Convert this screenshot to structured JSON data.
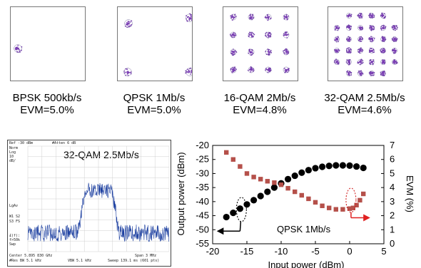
{
  "constellations": [
    {
      "label": "BPSK 500kb/s",
      "evm": "EVM=5.0%"
    },
    {
      "label": "QPSK 1Mb/s",
      "evm": "EVM=5.0%"
    },
    {
      "label": "16-QAM 2Mb/s",
      "evm": "EVM=4.8%"
    },
    {
      "label": "32-QAM 2.5Mb/s",
      "evm": "EVM=4.6%"
    }
  ],
  "spectrum": {
    "title": "32-QAM 2.5Mb/s",
    "ref": "Ref -30 dBm",
    "atten": "#Atten 6 dB",
    "left_labels": [
      "Norm",
      "Log",
      "10",
      "dB/",
      "LgAv",
      "W1  S2",
      "S3  FS",
      "£(f):",
      "f>50k",
      "Swp"
    ],
    "center": "Center 5.895 830 GHz",
    "span": "Span 3 MHz",
    "res_bw": "#Res BW 5.1 kHz",
    "vbw": "VBW 5.1 kHz",
    "sweep": "Sweep 139.1 ms (601 pts)"
  },
  "chart_data": {
    "type": "scatter",
    "title": "",
    "xlabel": "Input power (dBm)",
    "ylabel": "Output power (dBm)",
    "y2label": "EVM (%)",
    "xlim": [
      -20,
      5
    ],
    "ylim": [
      -55,
      -20
    ],
    "y2lim": [
      0,
      7
    ],
    "xticks": [
      -20,
      -15,
      -10,
      -5,
      0,
      5
    ],
    "yticks": [
      -20,
      -25,
      -30,
      -35,
      -40,
      -45,
      -50,
      -55
    ],
    "y2ticks": [
      7,
      6,
      5,
      4,
      3,
      2,
      1,
      0
    ],
    "annotation": "QPSK 1Mb/s",
    "series": [
      {
        "axis": "left",
        "color": "#000000",
        "marker": "circle",
        "x": [
          -18,
          -17,
          -16,
          -15,
          -14,
          -13,
          -12,
          -11,
          -10,
          -9,
          -8,
          -7,
          -6,
          -5,
          -4,
          -3,
          -2,
          -1,
          0,
          1,
          2
        ],
        "y": [
          -45.5,
          -44,
          -42.5,
          -41,
          -39.5,
          -38,
          -36.5,
          -35,
          -33.5,
          -32,
          -30.8,
          -29.7,
          -28.8,
          -28.1,
          -27.6,
          -27.3,
          -27.1,
          -27.1,
          -27.2,
          -27.5,
          -28
        ]
      },
      {
        "axis": "right",
        "color": "#b5504a",
        "marker": "square",
        "x": [
          -18,
          -17,
          -16,
          -15,
          -14,
          -13,
          -12,
          -11,
          -10,
          -9,
          -8,
          -7,
          -6,
          -5,
          -4,
          -3,
          -2,
          -1,
          0,
          0.5,
          1,
          1.5,
          2
        ],
        "y": [
          6.5,
          6.0,
          5.5,
          5.0,
          4.75,
          4.6,
          4.45,
          4.35,
          4.2,
          3.95,
          3.7,
          3.45,
          3.2,
          2.95,
          2.7,
          2.55,
          2.45,
          2.45,
          2.5,
          2.55,
          2.75,
          3.1,
          3.55
        ]
      }
    ]
  }
}
